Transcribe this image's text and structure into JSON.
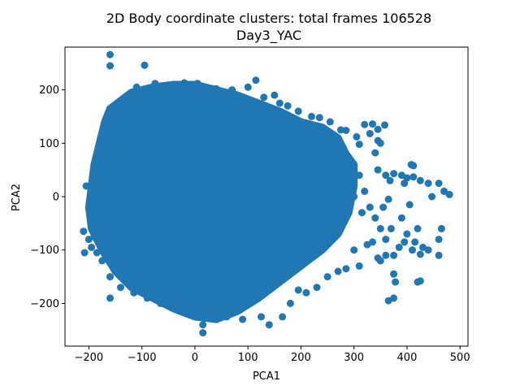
{
  "chart_data": {
    "type": "scatter",
    "title": "2D Body coordinate clusters: total frames 106528",
    "subtitle": "Day3_YAC",
    "xlabel": "PCA1",
    "ylabel": "PCA2",
    "xlim": [
      -245,
      515
    ],
    "ylim": [
      -280,
      280
    ],
    "xticks": [
      -200,
      -100,
      0,
      100,
      200,
      300,
      400,
      500
    ],
    "yticks": [
      -200,
      -100,
      0,
      100,
      200
    ],
    "xtick_labels": [
      "−200",
      "−100",
      "0",
      "100",
      "200",
      "300",
      "400",
      "500"
    ],
    "ytick_labels": [
      "−200",
      "−100",
      "0",
      "100",
      "200"
    ],
    "color": "#1f77b4",
    "grid": false,
    "dense_region_outline": [
      [
        -160,
        165
      ],
      [
        -120,
        195
      ],
      [
        -80,
        205
      ],
      [
        -40,
        210
      ],
      [
        0,
        210
      ],
      [
        40,
        200
      ],
      [
        80,
        190
      ],
      [
        120,
        175
      ],
      [
        160,
        160
      ],
      [
        200,
        140
      ],
      [
        240,
        130
      ],
      [
        270,
        110
      ],
      [
        285,
        80
      ],
      [
        300,
        60
      ],
      [
        300,
        20
      ],
      [
        290,
        -30
      ],
      [
        270,
        -70
      ],
      [
        240,
        -100
      ],
      [
        200,
        -130
      ],
      [
        160,
        -160
      ],
      [
        120,
        -190
      ],
      [
        80,
        -215
      ],
      [
        40,
        -230
      ],
      [
        0,
        -225
      ],
      [
        -40,
        -210
      ],
      [
        -80,
        -190
      ],
      [
        -120,
        -170
      ],
      [
        -150,
        -140
      ],
      [
        -175,
        -100
      ],
      [
        -195,
        -60
      ],
      [
        -200,
        -20
      ],
      [
        -195,
        20
      ],
      [
        -190,
        60
      ],
      [
        -180,
        100
      ],
      [
        -170,
        140
      ]
    ],
    "points": [
      [
        -160,
        266
      ],
      [
        -160,
        245
      ],
      [
        -95,
        246
      ],
      [
        -110,
        205
      ],
      [
        -75,
        212
      ],
      [
        -48,
        207
      ],
      [
        -20,
        213
      ],
      [
        5,
        212
      ],
      [
        40,
        202
      ],
      [
        70,
        200
      ],
      [
        100,
        205
      ],
      [
        115,
        218
      ],
      [
        130,
        186
      ],
      [
        150,
        190
      ],
      [
        160,
        175
      ],
      [
        175,
        170
      ],
      [
        195,
        160
      ],
      [
        220,
        150
      ],
      [
        235,
        148
      ],
      [
        255,
        140
      ],
      [
        275,
        125
      ],
      [
        285,
        124
      ],
      [
        305,
        112
      ],
      [
        310,
        98
      ],
      [
        320,
        135
      ],
      [
        335,
        136
      ],
      [
        330,
        118
      ],
      [
        345,
        105
      ],
      [
        345,
        126
      ],
      [
        350,
        100
      ],
      [
        358,
        134
      ],
      [
        340,
        82
      ],
      [
        345,
        50
      ],
      [
        360,
        40
      ],
      [
        368,
        30
      ],
      [
        375,
        43
      ],
      [
        390,
        40
      ],
      [
        395,
        25
      ],
      [
        400,
        35
      ],
      [
        408,
        60
      ],
      [
        412,
        58
      ],
      [
        412,
        37
      ],
      [
        425,
        30
      ],
      [
        440,
        25
      ],
      [
        447,
        0
      ],
      [
        460,
        25
      ],
      [
        470,
        10
      ],
      [
        480,
        4
      ],
      [
        330,
        -20
      ],
      [
        340,
        -40
      ],
      [
        350,
        -60
      ],
      [
        355,
        -20
      ],
      [
        360,
        -80
      ],
      [
        365,
        -5
      ],
      [
        370,
        -60
      ],
      [
        375,
        -110
      ],
      [
        385,
        -95
      ],
      [
        390,
        -40
      ],
      [
        395,
        -85
      ],
      [
        400,
        -70
      ],
      [
        405,
        -15
      ],
      [
        410,
        -100
      ],
      [
        415,
        -85
      ],
      [
        420,
        -60
      ],
      [
        425,
        -108
      ],
      [
        430,
        -95
      ],
      [
        440,
        -100
      ],
      [
        460,
        -110
      ],
      [
        460,
        -80
      ],
      [
        465,
        -60
      ],
      [
        325,
        -90
      ],
      [
        335,
        -85
      ],
      [
        345,
        -115
      ],
      [
        350,
        -120
      ],
      [
        360,
        -110
      ],
      [
        375,
        -145
      ],
      [
        378,
        -160
      ],
      [
        375,
        -190
      ],
      [
        365,
        -195
      ],
      [
        420,
        -160
      ],
      [
        425,
        -158
      ],
      [
        300,
        -100
      ],
      [
        310,
        -130
      ],
      [
        285,
        -135
      ],
      [
        270,
        -140
      ],
      [
        250,
        -150
      ],
      [
        230,
        -170
      ],
      [
        210,
        -180
      ],
      [
        195,
        -175
      ],
      [
        180,
        -200
      ],
      [
        165,
        -225
      ],
      [
        140,
        -240
      ],
      [
        125,
        -225
      ],
      [
        90,
        -230
      ],
      [
        60,
        -225
      ],
      [
        40,
        -215
      ],
      [
        15,
        -240
      ],
      [
        15,
        -255
      ],
      [
        -10,
        -205
      ],
      [
        -40,
        -195
      ],
      [
        -65,
        -200
      ],
      [
        -90,
        -190
      ],
      [
        -115,
        -180
      ],
      [
        -140,
        -170
      ],
      [
        -160,
        -190
      ],
      [
        -160,
        -150
      ],
      [
        -175,
        -120
      ],
      [
        -185,
        -105
      ],
      [
        -195,
        -95
      ],
      [
        -208,
        -105
      ],
      [
        -210,
        -65
      ],
      [
        -200,
        -80
      ],
      [
        -190,
        -75
      ],
      [
        -205,
        20
      ],
      [
        -185,
        25
      ],
      [
        -175,
        60
      ],
      [
        -168,
        95
      ],
      [
        -160,
        140
      ],
      [
        -148,
        160
      ],
      [
        -130,
        178
      ],
      [
        270,
        70
      ],
      [
        280,
        20
      ],
      [
        290,
        -10
      ],
      [
        255,
        30
      ],
      [
        240,
        -50
      ],
      [
        220,
        100
      ],
      [
        300,
        0
      ],
      [
        315,
        -30
      ],
      [
        310,
        40
      ],
      [
        320,
        10
      ]
    ]
  }
}
